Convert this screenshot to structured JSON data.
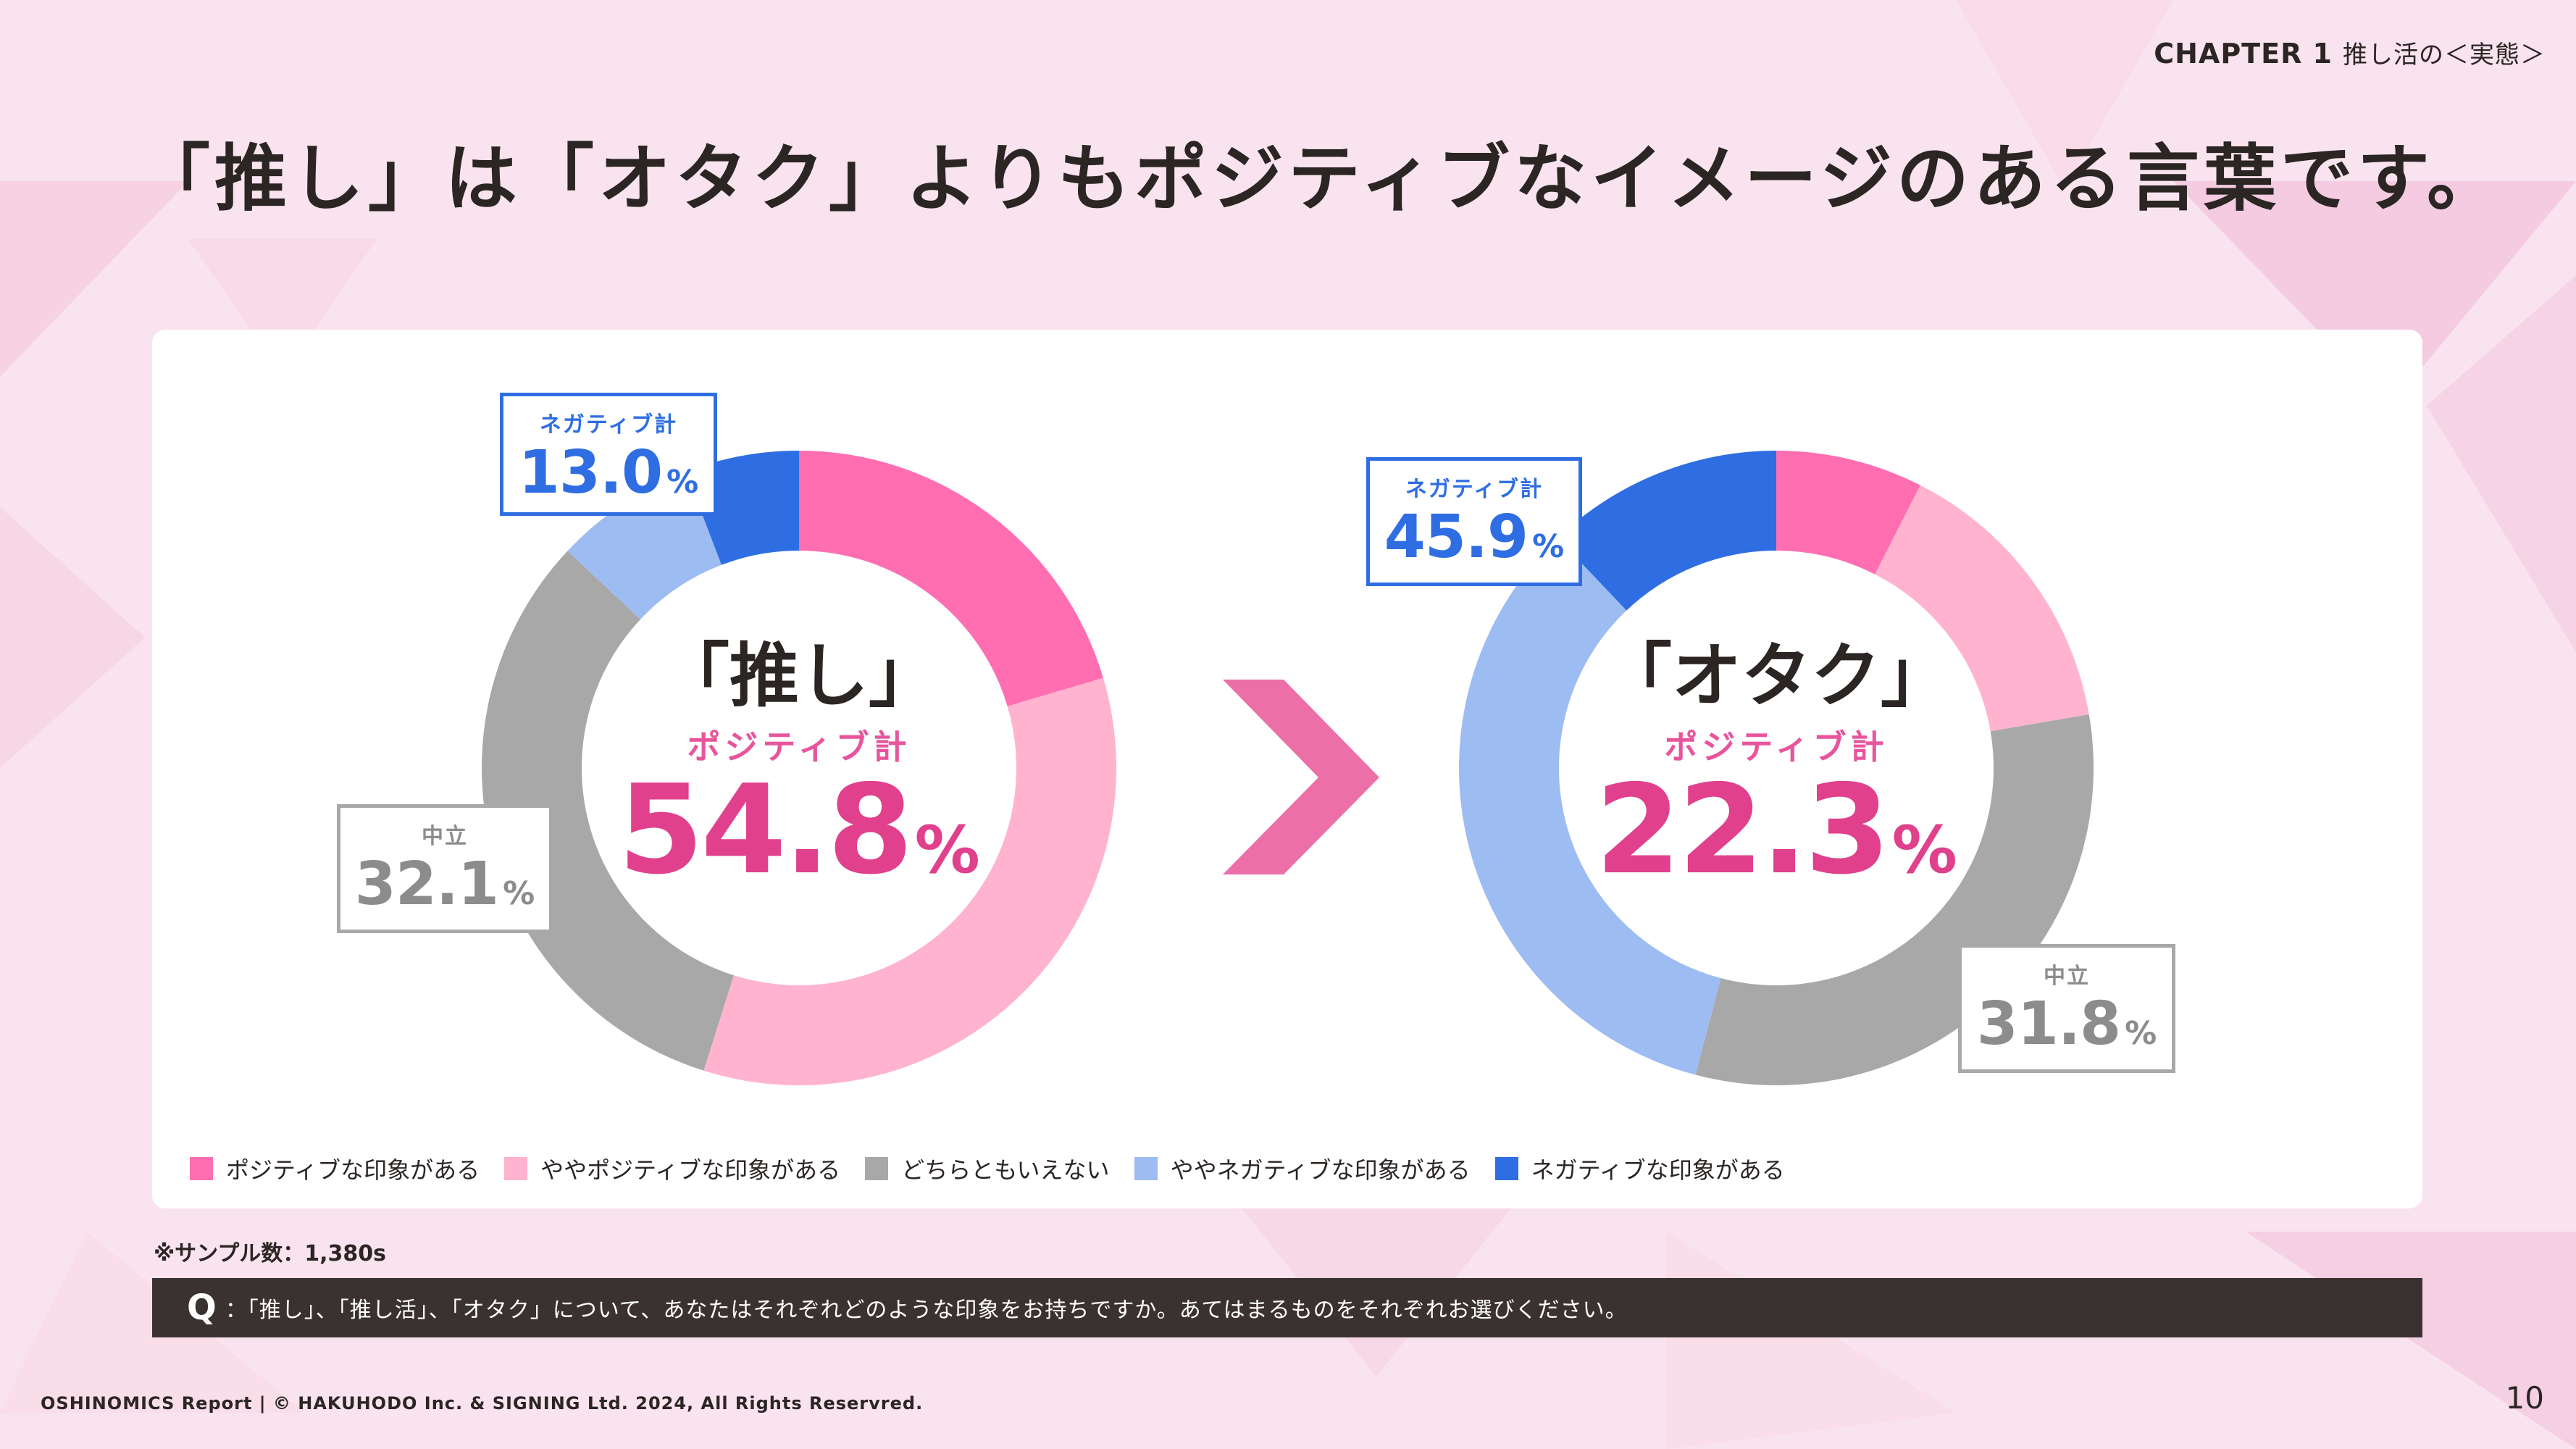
{
  "header": {
    "chapter": "CHAPTER 1",
    "chapter_sub": "推し活の＜実態＞",
    "headline": "「推し」は「オタク」よりもポジティブなイメージのある言葉です。"
  },
  "colors": {
    "positive": "#ff6eb1",
    "slightly_positive": "#ffb3cf",
    "neutral": "#a8a8a8",
    "slightly_negative": "#9dbcf2",
    "negative": "#2f6ee2",
    "accent_pink": "#e0408c",
    "arrow": "#ec6fa8"
  },
  "comparison_symbol": ">",
  "charts": [
    {
      "title": "「推し」",
      "positive_label": "ポジティブ計",
      "positive_value": "54.8",
      "neutral_label": "中立",
      "neutral_value": "32.1",
      "negative_label": "ネガティブ計",
      "negative_value": "13.0",
      "pct": "%"
    },
    {
      "title": "「オタク」",
      "positive_label": "ポジティブ計",
      "positive_value": "22.3",
      "neutral_label": "中立",
      "neutral_value": "31.8",
      "negative_label": "ネガティブ計",
      "negative_value": "45.9",
      "pct": "%"
    }
  ],
  "chart_data": [
    {
      "type": "pie",
      "title": "「推し」",
      "categories": [
        "ポジティブな印象がある",
        "ややポジティブな印象がある",
        "どちらともいえない",
        "ややネガティブな印象がある",
        "ネガティブな印象がある"
      ],
      "values": [
        20.4,
        34.4,
        32.1,
        7.2,
        5.8
      ]
    },
    {
      "type": "pie",
      "title": "「オタク」",
      "categories": [
        "ポジティブな印象がある",
        "ややポジティブな印象がある",
        "どちらともいえない",
        "ややネガティブな印象がある",
        "ネガティブな印象がある"
      ],
      "values": [
        7.5,
        14.8,
        31.8,
        33.8,
        12.1
      ]
    }
  ],
  "legend": [
    {
      "label": "ポジティブな印象がある",
      "color": "#ff6eb1"
    },
    {
      "label": "ややポジティブな印象がある",
      "color": "#ffb3cf"
    },
    {
      "label": "どちらともいえない",
      "color": "#a8a8a8"
    },
    {
      "label": "ややネガティブな印象がある",
      "color": "#9dbcf2"
    },
    {
      "label": "ネガティブな印象がある",
      "color": "#2f6ee2"
    }
  ],
  "note": "※サンプル数：1,380s",
  "question": {
    "mark": "Q",
    "text": "：「推し」、「推し活」、「オタク」について、あなたはそれぞれどのような印象をお持ちですか。あてはまるものをそれぞれお選びください。"
  },
  "footer": {
    "copyright": "OSHINOMICS Report | © HAKUHODO Inc. & SIGNING Ltd. 2024, All Rights Reservred.",
    "page_number": "10"
  }
}
